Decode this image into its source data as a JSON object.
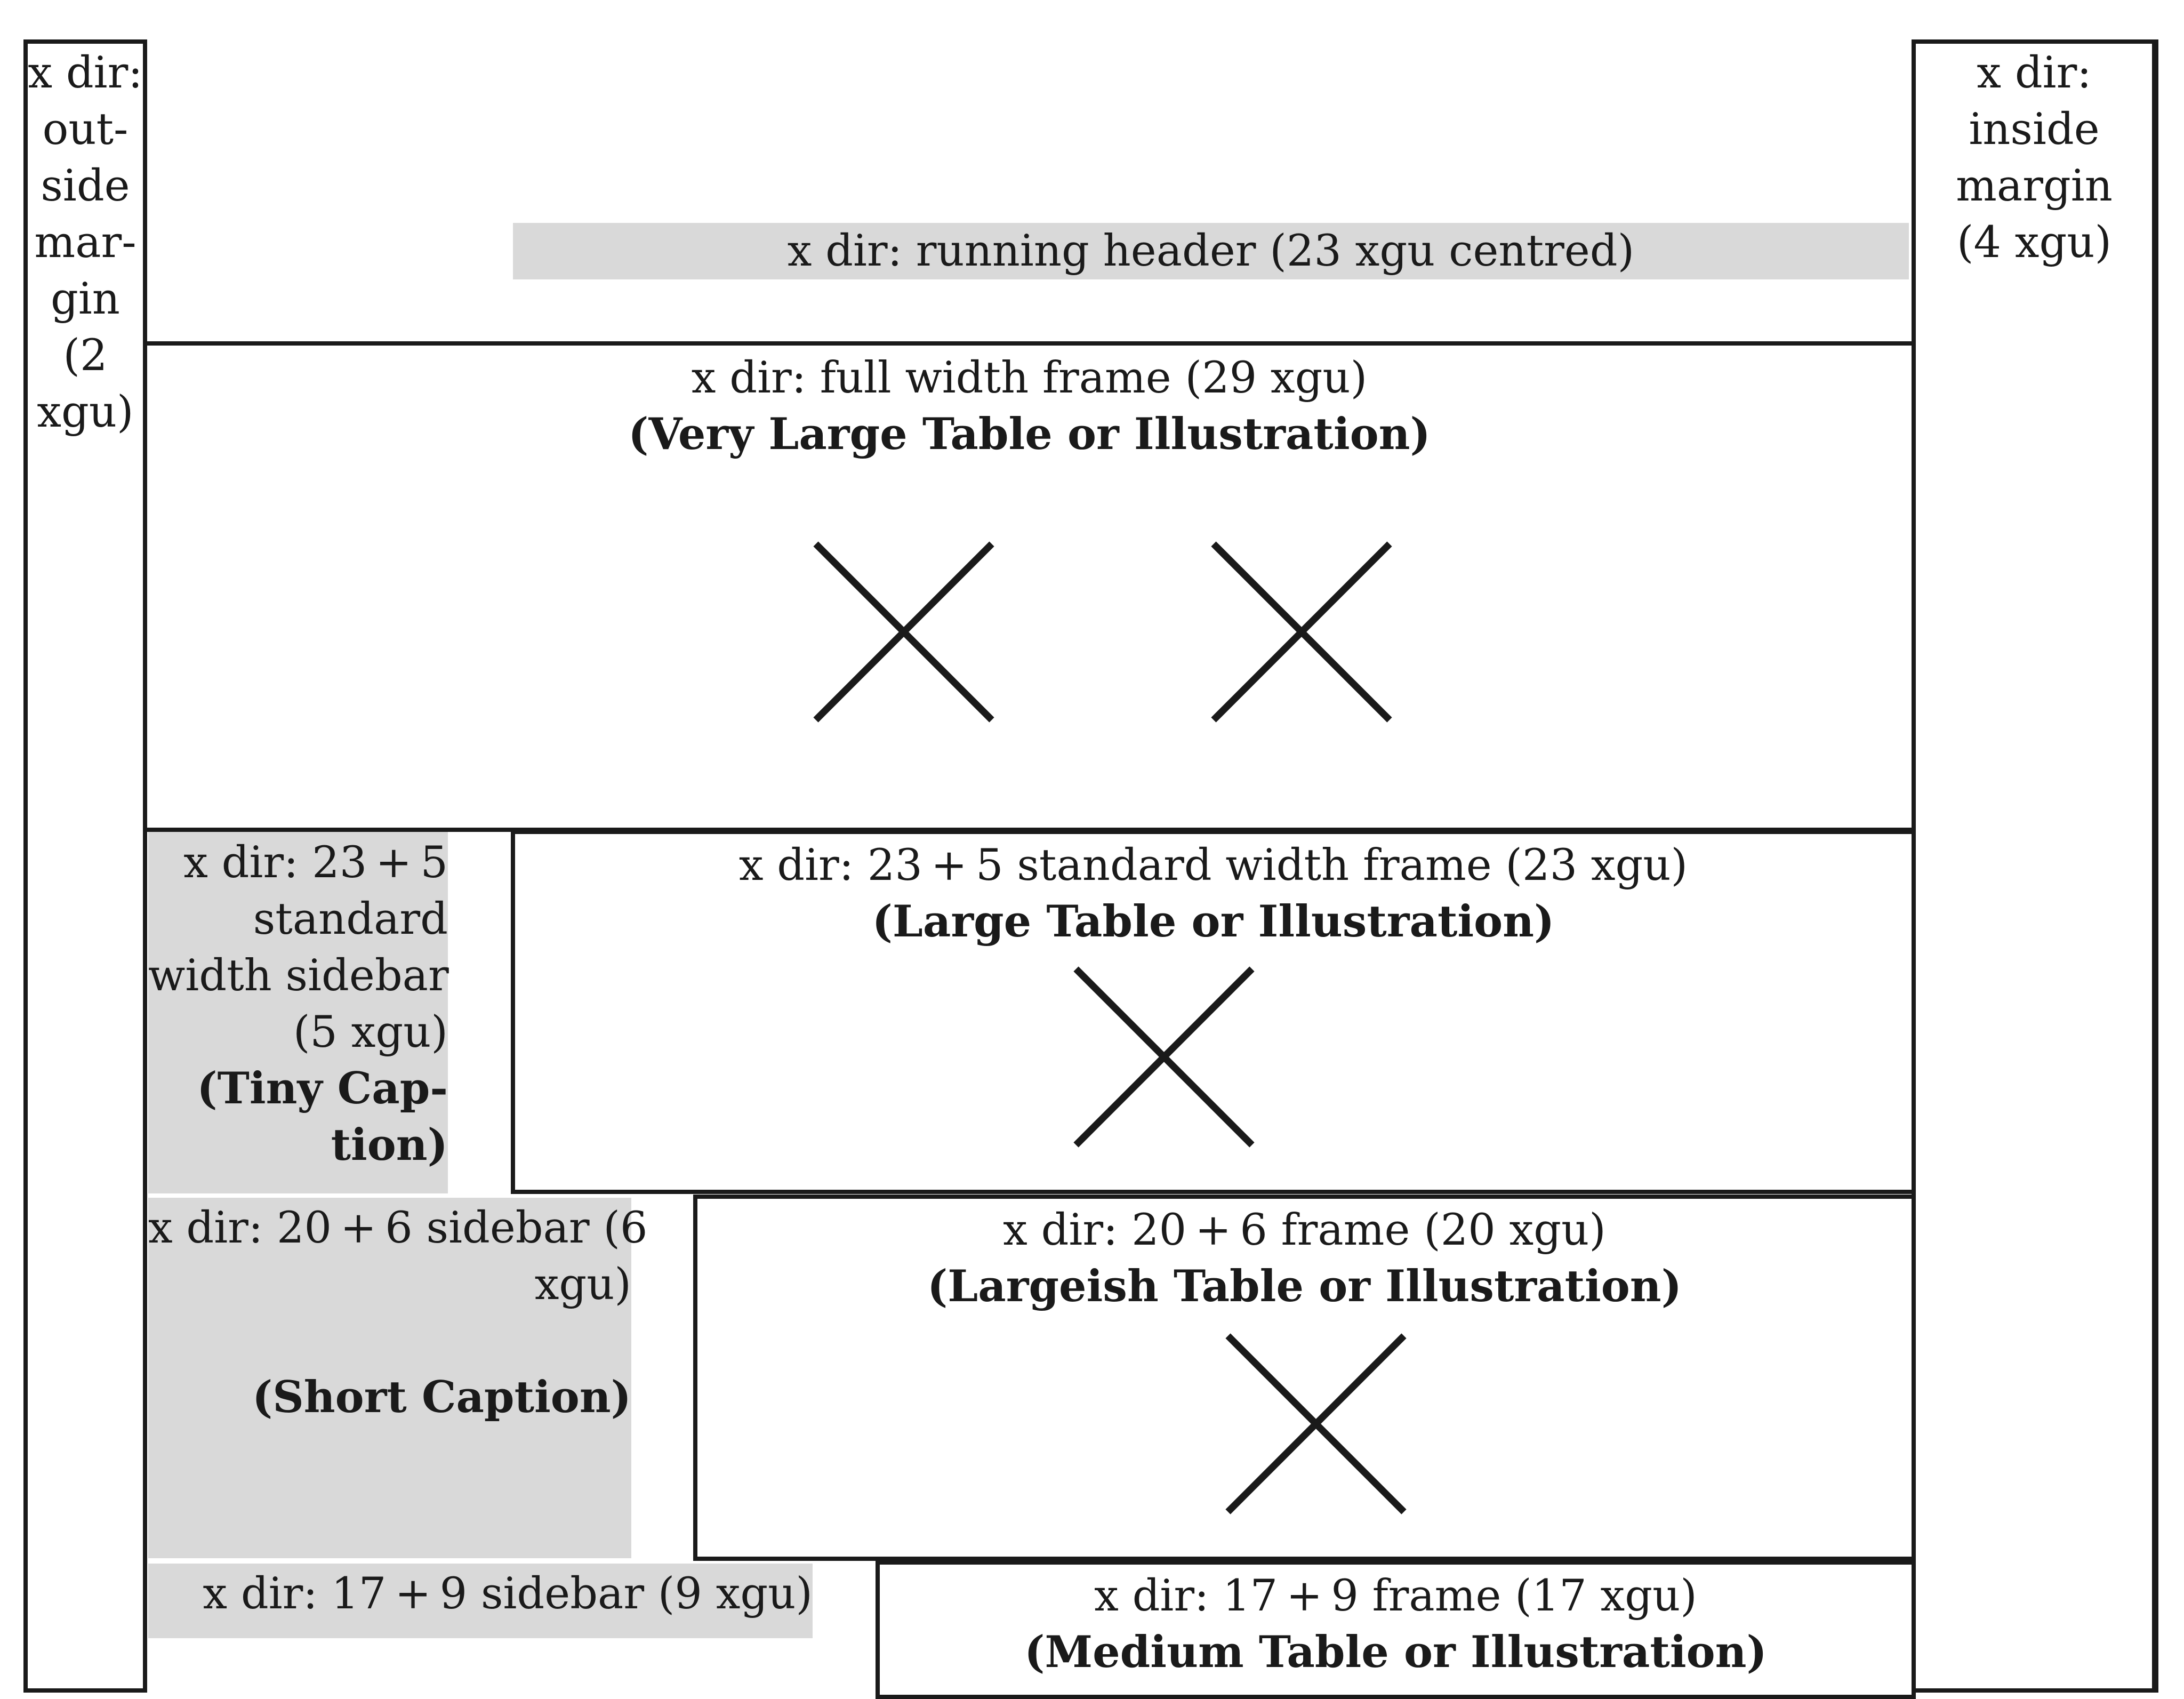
{
  "outside_margin": {
    "lines": [
      "x dir:",
      "out-",
      "side",
      "mar-",
      "gin",
      "(2",
      "xgu)"
    ]
  },
  "inside_margin": {
    "lines": [
      "x dir:",
      "inside",
      "margin",
      "(4 xgu)"
    ]
  },
  "running_header": {
    "label": "x dir: running header (23 xgu centred)"
  },
  "full_width_frame": {
    "label": "x dir: full width frame (29 xgu)",
    "caption": "(Very Large Table or Illustration)"
  },
  "sidebar_23_5": {
    "lines": [
      "x dir: 23 + 5",
      "standard",
      "width sidebar",
      "(5 xgu)"
    ],
    "caption_lines": [
      "(Tiny Cap-",
      "tion)"
    ]
  },
  "frame_23_5": {
    "label": "x dir: 23 + 5 standard width frame (23 xgu)",
    "caption": "(Large Table or Illustration)"
  },
  "sidebar_20_6": {
    "lines": [
      "x dir: 20 + 6 sidebar (6",
      "xgu)"
    ],
    "caption": "(Short Caption)"
  },
  "frame_20_6": {
    "label": "x dir: 20 + 6 frame (20 xgu)",
    "caption": "(Largeish Table or Illustration)"
  },
  "sidebar_17_9": {
    "lines": [
      "x dir: 17 + 9 sidebar (9 xgu)"
    ]
  },
  "frame_17_9": {
    "label": "x dir: 17 + 9 frame (17 xgu)",
    "caption": "(Medium Table or Illustration)"
  }
}
